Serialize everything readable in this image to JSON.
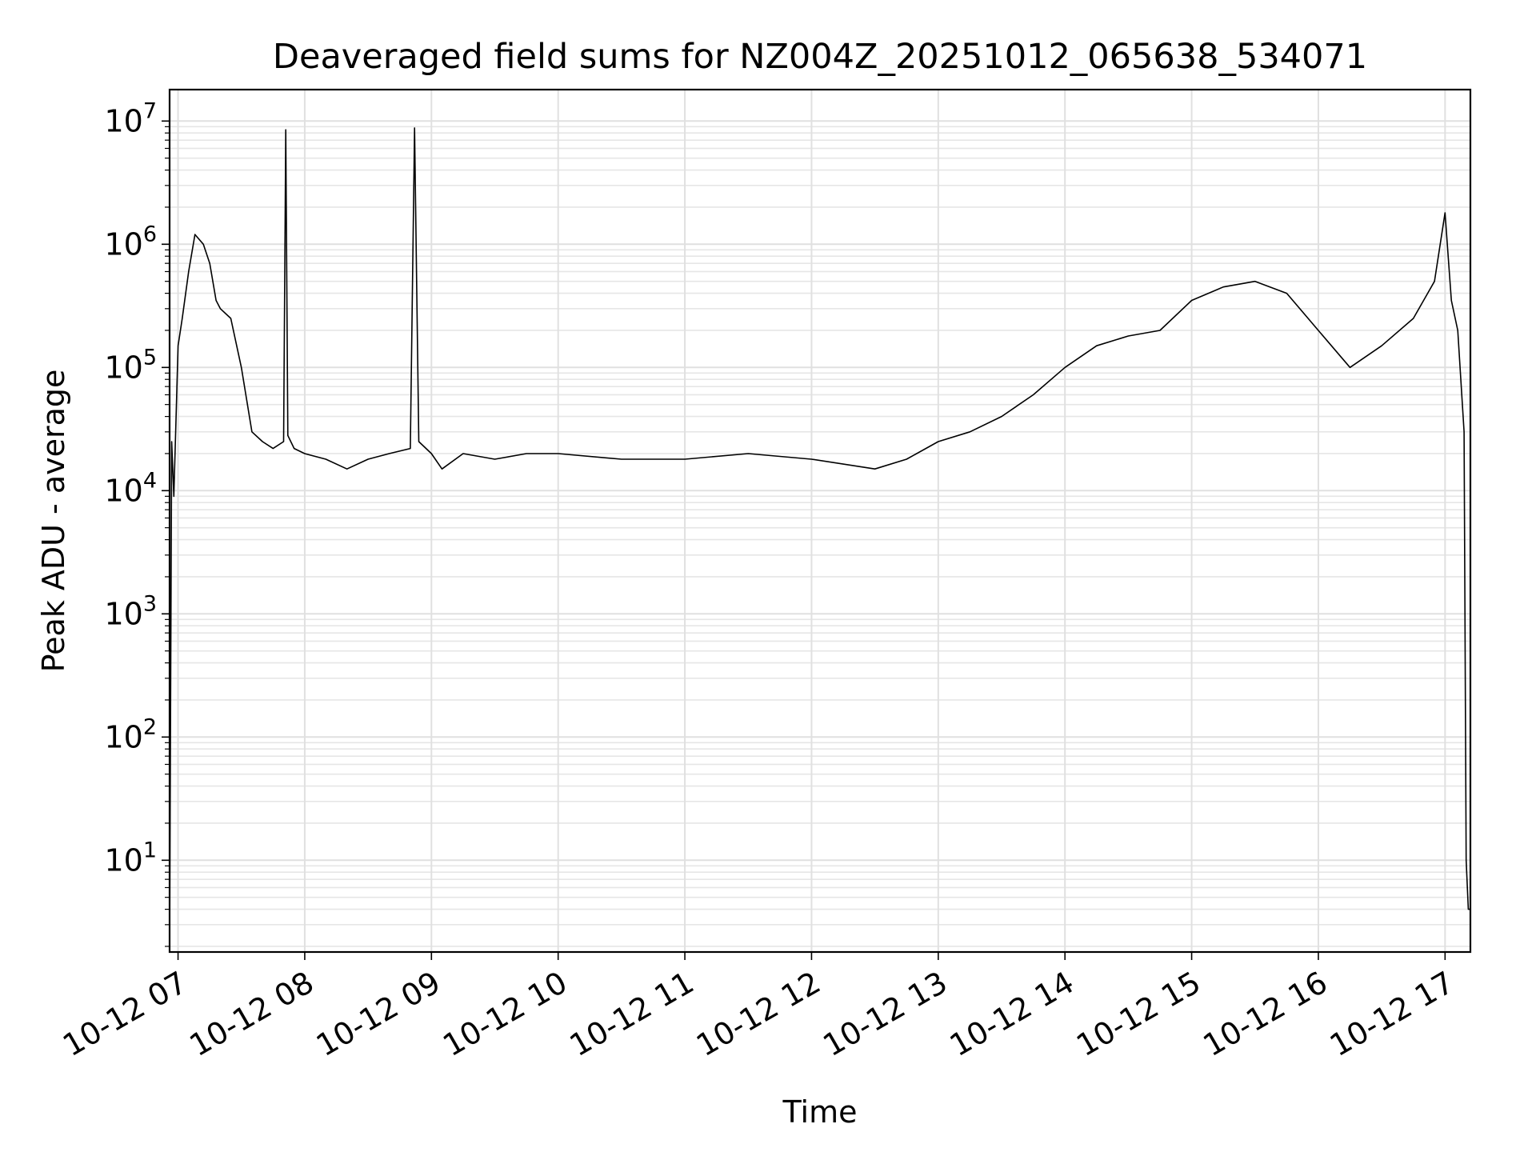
{
  "chart_data": {
    "type": "line",
    "title": "Deaveraged field sums for NZ004Z_20251012_065638_534071",
    "xlabel": "Time",
    "ylabel": "Peak ADU - average",
    "yscale": "log",
    "ylim": [
      1.8,
      18000000
    ],
    "xlim": [
      "2025-10-12 06:56",
      "2025-10-12 17:12"
    ],
    "grid": "on",
    "line_color": "#000000",
    "xticks": [
      {
        "value": "2025-10-12 07:00",
        "label": "10-12 07"
      },
      {
        "value": "2025-10-12 08:00",
        "label": "10-12 08"
      },
      {
        "value": "2025-10-12 09:00",
        "label": "10-12 09"
      },
      {
        "value": "2025-10-12 10:00",
        "label": "10-12 10"
      },
      {
        "value": "2025-10-12 11:00",
        "label": "10-12 11"
      },
      {
        "value": "2025-10-12 12:00",
        "label": "10-12 12"
      },
      {
        "value": "2025-10-12 13:00",
        "label": "10-12 13"
      },
      {
        "value": "2025-10-12 14:00",
        "label": "10-12 14"
      },
      {
        "value": "2025-10-12 15:00",
        "label": "10-12 15"
      },
      {
        "value": "2025-10-12 16:00",
        "label": "10-12 16"
      },
      {
        "value": "2025-10-12 17:00",
        "label": "10-12 17"
      }
    ],
    "yticks": [
      {
        "value": 10,
        "base": "10",
        "exp": "1"
      },
      {
        "value": 100,
        "base": "10",
        "exp": "2"
      },
      {
        "value": 1000,
        "base": "10",
        "exp": "3"
      },
      {
        "value": 10000,
        "base": "10",
        "exp": "4"
      },
      {
        "value": 100000,
        "base": "10",
        "exp": "5"
      },
      {
        "value": 1000000,
        "base": "10",
        "exp": "6"
      },
      {
        "value": 10000000,
        "base": "10",
        "exp": "7"
      }
    ],
    "series": [
      {
        "x": [
          "2025-10-12 06:56",
          "2025-10-12 06:57",
          "2025-10-12 06:58",
          "2025-10-12 07:00",
          "2025-10-12 07:02",
          "2025-10-12 07:05",
          "2025-10-12 07:08",
          "2025-10-12 07:12",
          "2025-10-12 07:15",
          "2025-10-12 07:18",
          "2025-10-12 07:20",
          "2025-10-12 07:25",
          "2025-10-12 07:30",
          "2025-10-12 07:35",
          "2025-10-12 07:40",
          "2025-10-12 07:45",
          "2025-10-12 07:50",
          "2025-10-12 07:51",
          "2025-10-12 07:52",
          "2025-10-12 07:55",
          "2025-10-12 08:00",
          "2025-10-12 08:10",
          "2025-10-12 08:20",
          "2025-10-12 08:30",
          "2025-10-12 08:40",
          "2025-10-12 08:50",
          "2025-10-12 08:52",
          "2025-10-12 08:54",
          "2025-10-12 09:00",
          "2025-10-12 09:05",
          "2025-10-12 09:15",
          "2025-10-12 09:30",
          "2025-10-12 09:45",
          "2025-10-12 10:00",
          "2025-10-12 10:30",
          "2025-10-12 11:00",
          "2025-10-12 11:30",
          "2025-10-12 12:00",
          "2025-10-12 12:30",
          "2025-10-12 12:45",
          "2025-10-12 13:00",
          "2025-10-12 13:15",
          "2025-10-12 13:30",
          "2025-10-12 13:45",
          "2025-10-12 14:00",
          "2025-10-12 14:15",
          "2025-10-12 14:30",
          "2025-10-12 14:45",
          "2025-10-12 15:00",
          "2025-10-12 15:15",
          "2025-10-12 15:30",
          "2025-10-12 15:45",
          "2025-10-12 16:00",
          "2025-10-12 16:15",
          "2025-10-12 16:30",
          "2025-10-12 16:45",
          "2025-10-12 16:55",
          "2025-10-12 17:00",
          "2025-10-12 17:03",
          "2025-10-12 17:06",
          "2025-10-12 17:09",
          "2025-10-12 17:10",
          "2025-10-12 17:11",
          "2025-10-12 17:12"
        ],
        "y": [
          2,
          25000,
          9000,
          150000,
          250000,
          600000,
          1200000,
          1000000,
          700000,
          350000,
          300000,
          250000,
          100000,
          30000,
          25000,
          22000,
          25000,
          8500000,
          28000,
          22000,
          20000,
          18000,
          15000,
          18000,
          20000,
          22000,
          8800000,
          25000,
          20000,
          15000,
          20000,
          18000,
          20000,
          20000,
          18000,
          18000,
          20000,
          18000,
          15000,
          18000,
          25000,
          30000,
          40000,
          60000,
          100000,
          150000,
          180000,
          200000,
          350000,
          450000,
          500000,
          400000,
          200000,
          100000,
          150000,
          250000,
          500000,
          1800000,
          350000,
          200000,
          30000,
          10,
          4,
          4
        ]
      }
    ]
  }
}
